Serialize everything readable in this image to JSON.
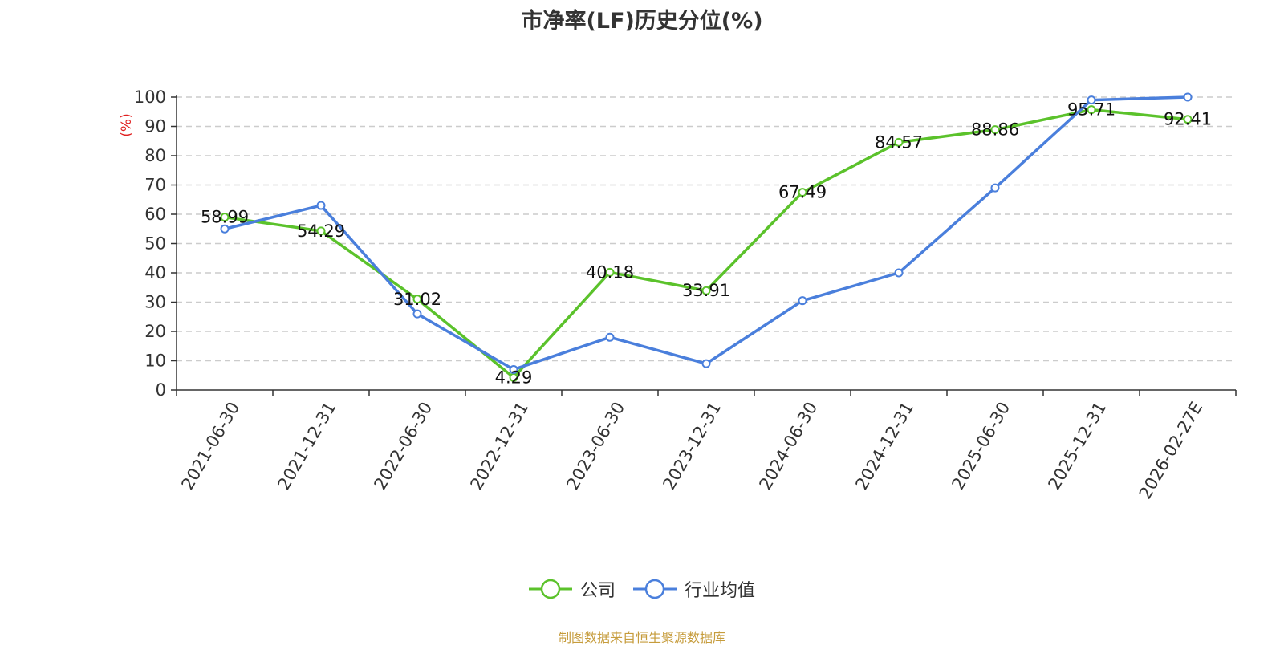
{
  "chart_data": {
    "type": "line",
    "title": "市净率(LF)历史分位(%)",
    "ylabel": "(%)",
    "xlabel": "",
    "categories": [
      "2021-06-30",
      "2021-12-31",
      "2022-06-30",
      "2022-12-31",
      "2023-06-30",
      "2023-12-31",
      "2024-06-30",
      "2024-12-31",
      "2025-06-30",
      "2025-12-31",
      "2026-02-27E"
    ],
    "ylim": [
      0,
      100
    ],
    "yticks": [
      0,
      10,
      20,
      30,
      40,
      50,
      60,
      70,
      80,
      90,
      100
    ],
    "grid": true,
    "legend_position": "bottom",
    "series": [
      {
        "name": "公司",
        "color": "#5bc22b",
        "values": [
          58.99,
          54.29,
          31.02,
          4.29,
          40.18,
          33.91,
          67.49,
          84.57,
          88.86,
          95.71,
          92.41
        ],
        "labels": [
          "58.99",
          "54.29",
          "31.02",
          "4.29",
          "40.18",
          "33.91",
          "67.49",
          "84.57",
          "88.86",
          "95.71",
          "92.41"
        ]
      },
      {
        "name": "行业均值",
        "color": "#4a7fdc",
        "values": [
          55,
          63,
          26,
          7,
          18,
          9,
          30.5,
          40,
          69,
          99,
          100
        ]
      }
    ]
  },
  "footer": {
    "source": "制图数据来自恒生聚源数据库"
  }
}
